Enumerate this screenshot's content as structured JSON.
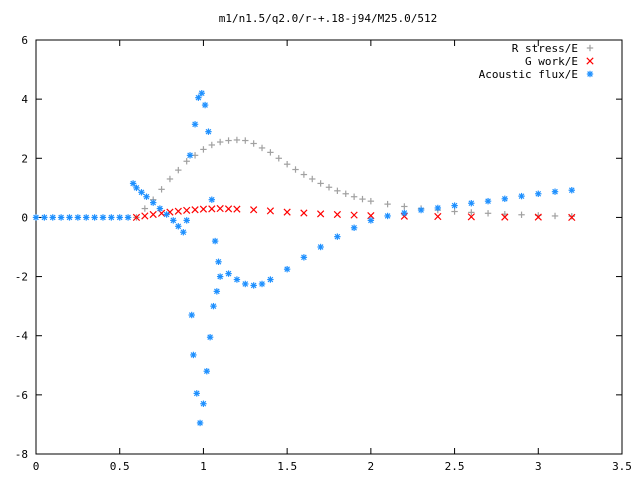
{
  "chart_data": {
    "type": "scatter",
    "title": "m1/n1.5/q2.0/r-+.18-j94/M25.0/512",
    "xlabel": "",
    "ylabel": "",
    "xlim": [
      0,
      3.5
    ],
    "ylim": [
      -8,
      6
    ],
    "x_ticks": [
      "0",
      "0.5",
      "1",
      "1.5",
      "2",
      "2.5",
      "3",
      "3.5"
    ],
    "y_ticks": [
      "6",
      "4",
      "2",
      "0",
      "-2",
      "-4",
      "-6",
      "-8"
    ],
    "grid": false,
    "legend_position": "top-right",
    "series": [
      {
        "name": "R stress/E",
        "marker": "+",
        "color": "#a0a0a0",
        "points": [
          [
            0.6,
            0.0
          ],
          [
            0.65,
            0.3
          ],
          [
            0.7,
            0.6
          ],
          [
            0.75,
            0.95
          ],
          [
            0.8,
            1.3
          ],
          [
            0.85,
            1.6
          ],
          [
            0.9,
            1.9
          ],
          [
            0.95,
            2.1
          ],
          [
            1.0,
            2.3
          ],
          [
            1.05,
            2.45
          ],
          [
            1.1,
            2.55
          ],
          [
            1.15,
            2.6
          ],
          [
            1.2,
            2.62
          ],
          [
            1.25,
            2.6
          ],
          [
            1.3,
            2.5
          ],
          [
            1.35,
            2.35
          ],
          [
            1.4,
            2.2
          ],
          [
            1.45,
            2.0
          ],
          [
            1.5,
            1.8
          ],
          [
            1.55,
            1.62
          ],
          [
            1.6,
            1.45
          ],
          [
            1.65,
            1.3
          ],
          [
            1.7,
            1.15
          ],
          [
            1.75,
            1.02
          ],
          [
            1.8,
            0.9
          ],
          [
            1.85,
            0.8
          ],
          [
            1.9,
            0.7
          ],
          [
            1.95,
            0.62
          ],
          [
            2.0,
            0.55
          ],
          [
            2.1,
            0.45
          ],
          [
            2.2,
            0.37
          ],
          [
            2.3,
            0.3
          ],
          [
            2.4,
            0.25
          ],
          [
            2.5,
            0.2
          ],
          [
            2.6,
            0.17
          ],
          [
            2.7,
            0.14
          ],
          [
            2.8,
            0.11
          ],
          [
            2.9,
            0.09
          ],
          [
            3.0,
            0.07
          ],
          [
            3.1,
            0.05
          ],
          [
            3.2,
            0.04
          ]
        ]
      },
      {
        "name": "G work/E",
        "marker": "x",
        "color": "#ff0000",
        "points": [
          [
            0.6,
            0.0
          ],
          [
            0.65,
            0.05
          ],
          [
            0.7,
            0.1
          ],
          [
            0.75,
            0.14
          ],
          [
            0.8,
            0.18
          ],
          [
            0.85,
            0.21
          ],
          [
            0.9,
            0.24
          ],
          [
            0.95,
            0.26
          ],
          [
            1.0,
            0.28
          ],
          [
            1.05,
            0.29
          ],
          [
            1.1,
            0.3
          ],
          [
            1.15,
            0.29
          ],
          [
            1.2,
            0.28
          ],
          [
            1.3,
            0.26
          ],
          [
            1.4,
            0.22
          ],
          [
            1.5,
            0.18
          ],
          [
            1.6,
            0.15
          ],
          [
            1.7,
            0.12
          ],
          [
            1.8,
            0.1
          ],
          [
            1.9,
            0.08
          ],
          [
            2.0,
            0.06
          ],
          [
            2.2,
            0.04
          ],
          [
            2.4,
            0.03
          ],
          [
            2.6,
            0.02
          ],
          [
            2.8,
            0.01
          ],
          [
            3.0,
            0.01
          ],
          [
            3.2,
            0.0
          ]
        ]
      },
      {
        "name": "Acoustic flux/E",
        "marker": "*",
        "color": "#1e90ff",
        "points": [
          [
            0.0,
            0.0
          ],
          [
            0.05,
            0.0
          ],
          [
            0.1,
            0.0
          ],
          [
            0.15,
            0.0
          ],
          [
            0.2,
            0.0
          ],
          [
            0.25,
            0.0
          ],
          [
            0.3,
            0.0
          ],
          [
            0.35,
            0.0
          ],
          [
            0.4,
            0.0
          ],
          [
            0.45,
            0.0
          ],
          [
            0.5,
            0.0
          ],
          [
            0.55,
            0.0
          ],
          [
            0.58,
            1.15
          ],
          [
            0.6,
            1.0
          ],
          [
            0.63,
            0.85
          ],
          [
            0.66,
            0.7
          ],
          [
            0.7,
            0.5
          ],
          [
            0.74,
            0.3
          ],
          [
            0.78,
            0.1
          ],
          [
            0.82,
            -0.1
          ],
          [
            0.85,
            -0.3
          ],
          [
            0.88,
            -0.5
          ],
          [
            0.9,
            -0.1
          ],
          [
            0.92,
            2.1
          ],
          [
            0.93,
            -3.3
          ],
          [
            0.94,
            -4.65
          ],
          [
            0.95,
            3.15
          ],
          [
            0.96,
            -5.95
          ],
          [
            0.97,
            4.05
          ],
          [
            0.98,
            -6.95
          ],
          [
            0.99,
            4.2
          ],
          [
            1.0,
            -6.3
          ],
          [
            1.01,
            3.8
          ],
          [
            1.02,
            -5.2
          ],
          [
            1.03,
            2.9
          ],
          [
            1.04,
            -4.05
          ],
          [
            1.05,
            0.6
          ],
          [
            1.06,
            -3.0
          ],
          [
            1.07,
            -0.8
          ],
          [
            1.08,
            -2.5
          ],
          [
            1.09,
            -1.5
          ],
          [
            1.1,
            -2.0
          ],
          [
            1.15,
            -1.9
          ],
          [
            1.2,
            -2.1
          ],
          [
            1.25,
            -2.25
          ],
          [
            1.3,
            -2.3
          ],
          [
            1.35,
            -2.25
          ],
          [
            1.4,
            -2.1
          ],
          [
            1.5,
            -1.75
          ],
          [
            1.6,
            -1.35
          ],
          [
            1.7,
            -1.0
          ],
          [
            1.8,
            -0.65
          ],
          [
            1.9,
            -0.35
          ],
          [
            2.0,
            -0.1
          ],
          [
            2.1,
            0.05
          ],
          [
            2.2,
            0.15
          ],
          [
            2.3,
            0.25
          ],
          [
            2.4,
            0.32
          ],
          [
            2.5,
            0.4
          ],
          [
            2.6,
            0.48
          ],
          [
            2.7,
            0.55
          ],
          [
            2.8,
            0.63
          ],
          [
            2.9,
            0.72
          ],
          [
            3.0,
            0.8
          ],
          [
            3.1,
            0.87
          ],
          [
            3.2,
            0.92
          ]
        ]
      }
    ]
  }
}
